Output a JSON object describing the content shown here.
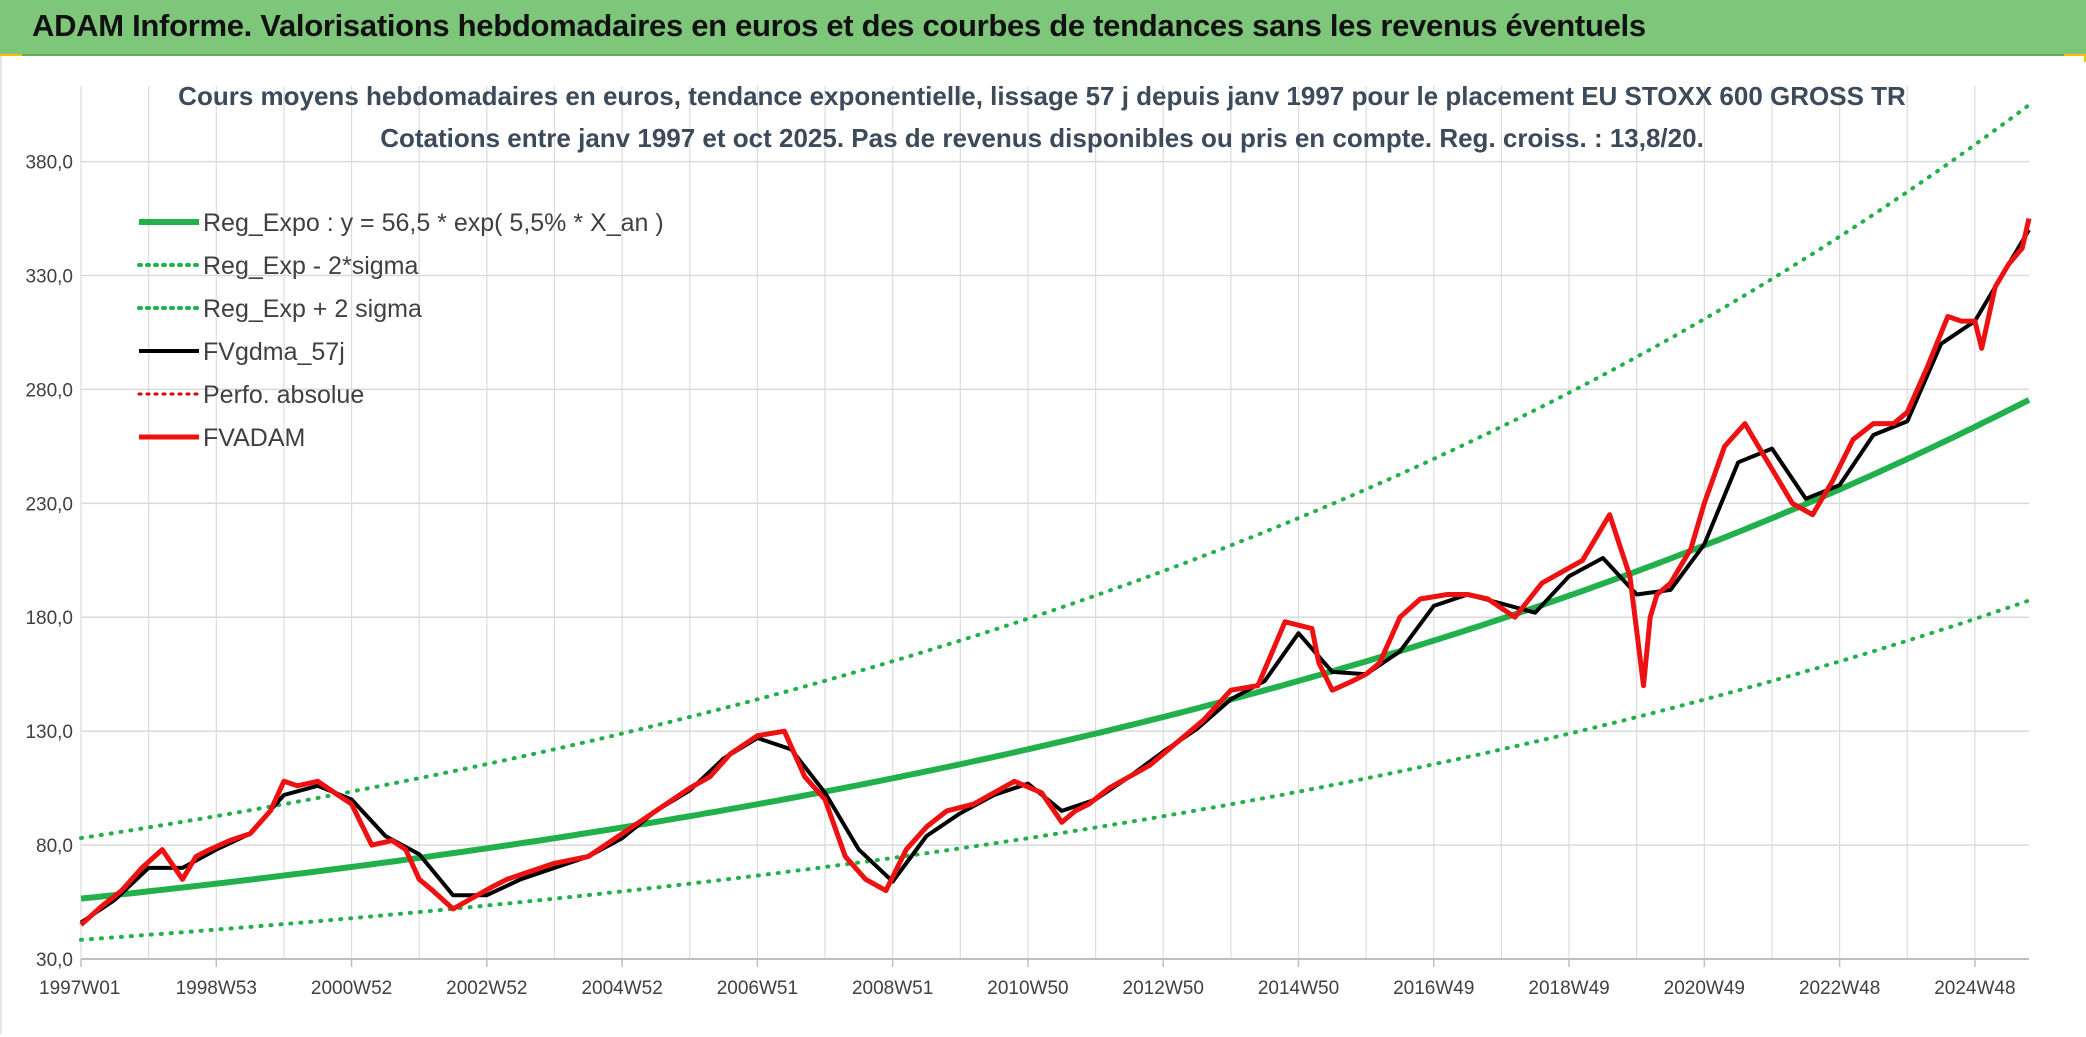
{
  "banner": {
    "title": "ADAM Informe. Valorisations hebdomadaires en euros et des courbes de tendances sans les revenus éventuels",
    "accent_color": "#7ec77a"
  },
  "chart_data": {
    "type": "line",
    "title": "Cours moyens hebdomadaires en euros, tendance exponentielle, lissage 57 j depuis janv 1997 pour le placement EU STOXX 600 GROSS TR",
    "subtitle": "Cotations entre janv 1997 et oct 2025. Pas de revenus disponibles ou pris en compte. Reg. croiss. : 13,8/20.",
    "xlabel": "",
    "ylabel": "",
    "x_range": [
      1997.0,
      2025.8
    ],
    "ylim": [
      30,
      400
    ],
    "grid": true,
    "legend_position": "top-left",
    "y_ticks": [
      "30,0",
      "80,0",
      "130,0",
      "180,0",
      "230,0",
      "280,0",
      "330,0",
      "380,0"
    ],
    "x_ticks": [
      {
        "label": "1997W01",
        "year": 1997.0
      },
      {
        "label": "1998W53",
        "year": 1999.0
      },
      {
        "label": "2000W52",
        "year": 2001.0
      },
      {
        "label": "2002W52",
        "year": 2003.0
      },
      {
        "label": "2004W52",
        "year": 2005.0
      },
      {
        "label": "2006W51",
        "year": 2007.0
      },
      {
        "label": "2008W51",
        "year": 2009.0
      },
      {
        "label": "2010W50",
        "year": 2011.0
      },
      {
        "label": "2012W50",
        "year": 2013.0
      },
      {
        "label": "2014W50",
        "year": 2015.0
      },
      {
        "label": "2016W49",
        "year": 2017.0
      },
      {
        "label": "2018W49",
        "year": 2019.0
      },
      {
        "label": "2020W49",
        "year": 2021.0
      },
      {
        "label": "2022W48",
        "year": 2023.0
      },
      {
        "label": "2024W48",
        "year": 2025.0
      }
    ],
    "regression": {
      "a": 56.5,
      "b": 0.055,
      "sigma_factor": 1.47
    },
    "series": [
      {
        "name": "Reg_Expo : y = 56,5 * exp( 5,5% *  X_an )",
        "color": "#21b04b",
        "style": "solid",
        "width": 6
      },
      {
        "name": "Reg_Exp - 2*sigma",
        "color": "#21b04b",
        "style": "dotted",
        "width": 4
      },
      {
        "name": "Reg_Exp + 2 sigma",
        "color": "#21b04b",
        "style": "dotted",
        "width": 4
      },
      {
        "name": "FVgdma_57j",
        "color": "#000000",
        "style": "solid",
        "width": 4
      },
      {
        "name": "Perfo. absolue",
        "color": "#e00000",
        "style": "dotted",
        "width": 3
      },
      {
        "name": "FVADAM",
        "color": "#ee1111",
        "style": "solid",
        "width": 5
      }
    ],
    "price": {
      "x": [
        1997.0,
        1997.3,
        1997.6,
        1997.9,
        1998.2,
        1998.5,
        1998.7,
        1998.9,
        1999.2,
        1999.5,
        1999.8,
        2000.0,
        2000.2,
        2000.5,
        2000.8,
        2001.0,
        2001.3,
        2001.6,
        2001.8,
        2002.0,
        2002.2,
        2002.5,
        2002.8,
        2003.1,
        2003.3,
        2003.6,
        2004.0,
        2004.5,
        2005.0,
        2005.5,
        2006.0,
        2006.3,
        2006.6,
        2007.0,
        2007.4,
        2007.7,
        2008.0,
        2008.3,
        2008.6,
        2008.9,
        2009.2,
        2009.5,
        2009.8,
        2010.2,
        2010.5,
        2010.8,
        2011.2,
        2011.5,
        2011.7,
        2011.9,
        2012.2,
        2012.5,
        2012.8,
        2013.2,
        2013.6,
        2014.0,
        2014.4,
        2014.8,
        2015.2,
        2015.3,
        2015.5,
        2015.8,
        2016.0,
        2016.2,
        2016.5,
        2016.8,
        2017.2,
        2017.5,
        2017.8,
        2018.2,
        2018.6,
        2018.9,
        2019.2,
        2019.6,
        2019.9,
        2020.1,
        2020.2,
        2020.3,
        2020.5,
        2020.8,
        2021.0,
        2021.3,
        2021.6,
        2021.9,
        2022.0,
        2022.3,
        2022.6,
        2022.9,
        2023.2,
        2023.5,
        2023.8,
        2024.0,
        2024.3,
        2024.6,
        2024.8,
        2025.0,
        2025.1,
        2025.3,
        2025.5,
        2025.7,
        2025.8
      ],
      "y": [
        45,
        53,
        60,
        70,
        78,
        65,
        75,
        78,
        82,
        85,
        95,
        108,
        106,
        108,
        102,
        98,
        80,
        82,
        78,
        65,
        60,
        52,
        57,
        62,
        65,
        68,
        72,
        75,
        85,
        95,
        105,
        110,
        120,
        128,
        130,
        110,
        100,
        75,
        65,
        60,
        78,
        88,
        95,
        98,
        103,
        108,
        103,
        90,
        95,
        98,
        105,
        110,
        115,
        125,
        135,
        148,
        150,
        178,
        175,
        160,
        148,
        152,
        155,
        160,
        180,
        188,
        190,
        190,
        188,
        180,
        195,
        200,
        205,
        225,
        198,
        150,
        180,
        190,
        195,
        210,
        230,
        255,
        265,
        250,
        245,
        230,
        225,
        240,
        258,
        265,
        265,
        270,
        290,
        312,
        310,
        310,
        298,
        325,
        335,
        342,
        355
      ]
    },
    "smooth": {
      "x": [
        1997.0,
        1997.5,
        1998.0,
        1998.5,
        1999.0,
        1999.5,
        2000.0,
        2000.5,
        2001.0,
        2001.5,
        2002.0,
        2002.5,
        2003.0,
        2003.5,
        2004.0,
        2004.5,
        2005.0,
        2005.5,
        2006.0,
        2006.5,
        2007.0,
        2007.5,
        2008.0,
        2008.5,
        2009.0,
        2009.5,
        2010.0,
        2010.5,
        2011.0,
        2011.5,
        2012.0,
        2012.5,
        2013.0,
        2013.5,
        2014.0,
        2014.5,
        2015.0,
        2015.5,
        2016.0,
        2016.5,
        2017.0,
        2017.5,
        2018.0,
        2018.5,
        2019.0,
        2019.5,
        2020.0,
        2020.5,
        2021.0,
        2021.5,
        2022.0,
        2022.5,
        2023.0,
        2023.5,
        2024.0,
        2024.5,
        2025.0,
        2025.5,
        2025.8
      ],
      "y": [
        46,
        56,
        70,
        70,
        78,
        85,
        102,
        106,
        100,
        84,
        76,
        58,
        58,
        65,
        70,
        75,
        83,
        95,
        104,
        118,
        127,
        122,
        103,
        78,
        64,
        84,
        94,
        102,
        107,
        95,
        100,
        110,
        121,
        131,
        144,
        152,
        173,
        156,
        155,
        165,
        185,
        190,
        186,
        182,
        198,
        206,
        190,
        192,
        212,
        248,
        254,
        232,
        238,
        260,
        266,
        300,
        310,
        335,
        350
      ]
    }
  },
  "legend": {
    "entries": [
      "Reg_Expo : y = 56,5 * exp( 5,5% *  X_an )",
      "Reg_Exp - 2*sigma",
      "Reg_Exp + 2 sigma",
      "FVgdma_57j",
      "Perfo. absolue",
      "FVADAM"
    ]
  }
}
